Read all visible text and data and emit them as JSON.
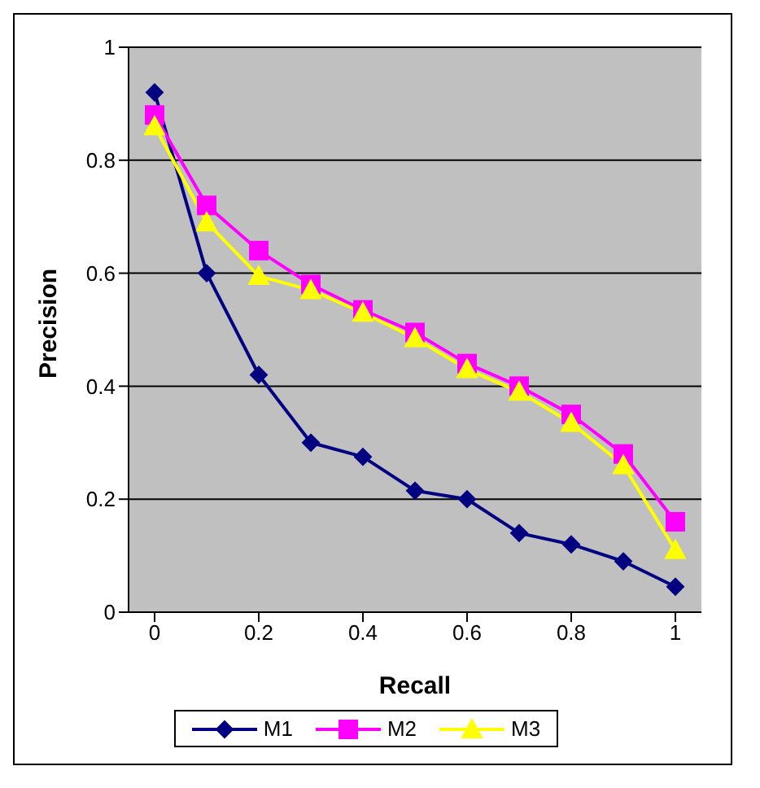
{
  "chart_data": {
    "type": "line",
    "xlabel": "Recall",
    "ylabel": "Precision",
    "x": [
      0,
      0.1,
      0.2,
      0.3,
      0.4,
      0.5,
      0.6,
      0.7,
      0.8,
      0.9,
      1
    ],
    "xlim": [
      -0.05,
      1.05
    ],
    "xticks": [
      0,
      0.2,
      0.4,
      0.6,
      0.8,
      1
    ],
    "ylim": [
      0,
      1
    ],
    "yticks": [
      0,
      0.2,
      0.4,
      0.6,
      0.8,
      1
    ],
    "grid": "y",
    "legend": "bottom",
    "series": [
      {
        "name": "M1",
        "color": "#000080",
        "marker": "diamond",
        "values": [
          0.92,
          0.6,
          0.42,
          0.3,
          0.275,
          0.215,
          0.2,
          0.14,
          0.12,
          0.09,
          0.045
        ]
      },
      {
        "name": "M2",
        "color": "#ff00ff",
        "marker": "square",
        "values": [
          0.88,
          0.72,
          0.64,
          0.58,
          0.535,
          0.495,
          0.44,
          0.4,
          0.35,
          0.28,
          0.16
        ]
      },
      {
        "name": "M3",
        "color": "#ffff00",
        "marker": "triangle",
        "values": [
          0.86,
          0.69,
          0.595,
          0.57,
          0.53,
          0.485,
          0.43,
          0.39,
          0.335,
          0.26,
          0.11
        ]
      }
    ]
  }
}
